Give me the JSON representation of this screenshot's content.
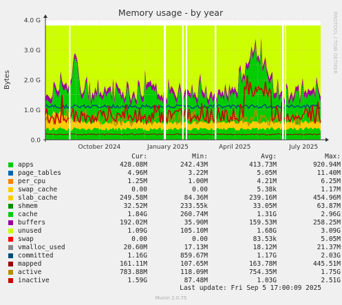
{
  "chart_data": {
    "type": "area",
    "title": "Memory usage - by year",
    "ylabel": "Bytes",
    "side_label": "RRDTOOL / TOBI OETIKER",
    "ylim": [
      0,
      4
    ],
    "ylim_unit": "G",
    "yticks": [
      "0.0",
      "1.0 G",
      "2.0 G",
      "3.0 G",
      "4.0 G"
    ],
    "xticks": [
      "October 2024",
      "January 2025",
      "April 2025",
      "July 2025"
    ],
    "grid": true,
    "colors": {
      "apps": "#00cc00",
      "page_tables": "#0066b3",
      "per_cpu": "#ff8000",
      "swap_cache": "#ffcc00",
      "slab_cache": "#ffcc00",
      "shmem": "#008f00",
      "cache": "#00cc00",
      "buffers": "#990099",
      "unused": "#ccff00",
      "swap": "#ff0000",
      "vmalloc_used": "#888888",
      "committed": "#004d79",
      "mapped": "#990000",
      "active": "#b38f00",
      "inactive": "#cc0000",
      "background": "#f0f0f0",
      "plot_background": "#ffffff"
    },
    "stack_approx_gb": {
      "apps": 0.42,
      "slab_cache": 0.24,
      "cache": 1.31,
      "buffers": 0.16,
      "unused": 1.68
    },
    "legend": {
      "headers": [
        "Cur:",
        "Min:",
        "Avg:",
        "Max:"
      ],
      "rows": [
        {
          "name": "apps",
          "color": "#00cc00",
          "cur": "428.08M",
          "min": "242.43M",
          "avg": "413.73M",
          "max": "920.94M"
        },
        {
          "name": "page_tables",
          "color": "#0066b3",
          "cur": "4.96M",
          "min": "3.22M",
          "avg": "5.05M",
          "max": "11.40M"
        },
        {
          "name": "per_cpu",
          "color": "#ff8000",
          "cur": "1.25M",
          "min": "1.00M",
          "avg": "4.21M",
          "max": "6.25M"
        },
        {
          "name": "swap_cache",
          "color": "#ffcc00",
          "cur": "0.00",
          "min": "0.00",
          "avg": "5.38k",
          "max": "1.17M"
        },
        {
          "name": "slab_cache",
          "color": "#ffcc00",
          "cur": "249.58M",
          "min": "84.36M",
          "avg": "239.16M",
          "max": "454.96M"
        },
        {
          "name": "shmem",
          "color": "#008f00",
          "cur": "32.52M",
          "min": "233.55k",
          "avg": "33.05M",
          "max": "63.87M"
        },
        {
          "name": "cache",
          "color": "#00cc00",
          "cur": "1.84G",
          "min": "260.74M",
          "avg": "1.31G",
          "max": "2.96G"
        },
        {
          "name": "buffers",
          "color": "#990099",
          "cur": "192.02M",
          "min": "35.90M",
          "avg": "159.53M",
          "max": "258.25M"
        },
        {
          "name": "unused",
          "color": "#ccff00",
          "cur": "1.09G",
          "min": "105.10M",
          "avg": "1.68G",
          "max": "3.09G"
        },
        {
          "name": "swap",
          "color": "#ff0000",
          "cur": "0.00",
          "min": "0.00",
          "avg": "83.53k",
          "max": "5.05M"
        },
        {
          "name": "vmalloc_used",
          "color": "#888888",
          "cur": "20.60M",
          "min": "17.13M",
          "avg": "18.12M",
          "max": "21.37M"
        },
        {
          "name": "committed",
          "color": "#004d79",
          "cur": "1.16G",
          "min": "859.67M",
          "avg": "1.17G",
          "max": "2.03G"
        },
        {
          "name": "mapped",
          "color": "#990000",
          "cur": "161.11M",
          "min": "107.65M",
          "avg": "163.78M",
          "max": "445.51M"
        },
        {
          "name": "active",
          "color": "#b38f00",
          "cur": "783.88M",
          "min": "118.09M",
          "avg": "754.35M",
          "max": "1.75G"
        },
        {
          "name": "inactive",
          "color": "#cc0000",
          "cur": "1.59G",
          "min": "87.48M",
          "avg": "1.03G",
          "max": "2.51G"
        }
      ]
    },
    "last_update": "Last update:  Fri Sep  5 17:00:09 2025",
    "version": "Munin 2.0.75"
  }
}
